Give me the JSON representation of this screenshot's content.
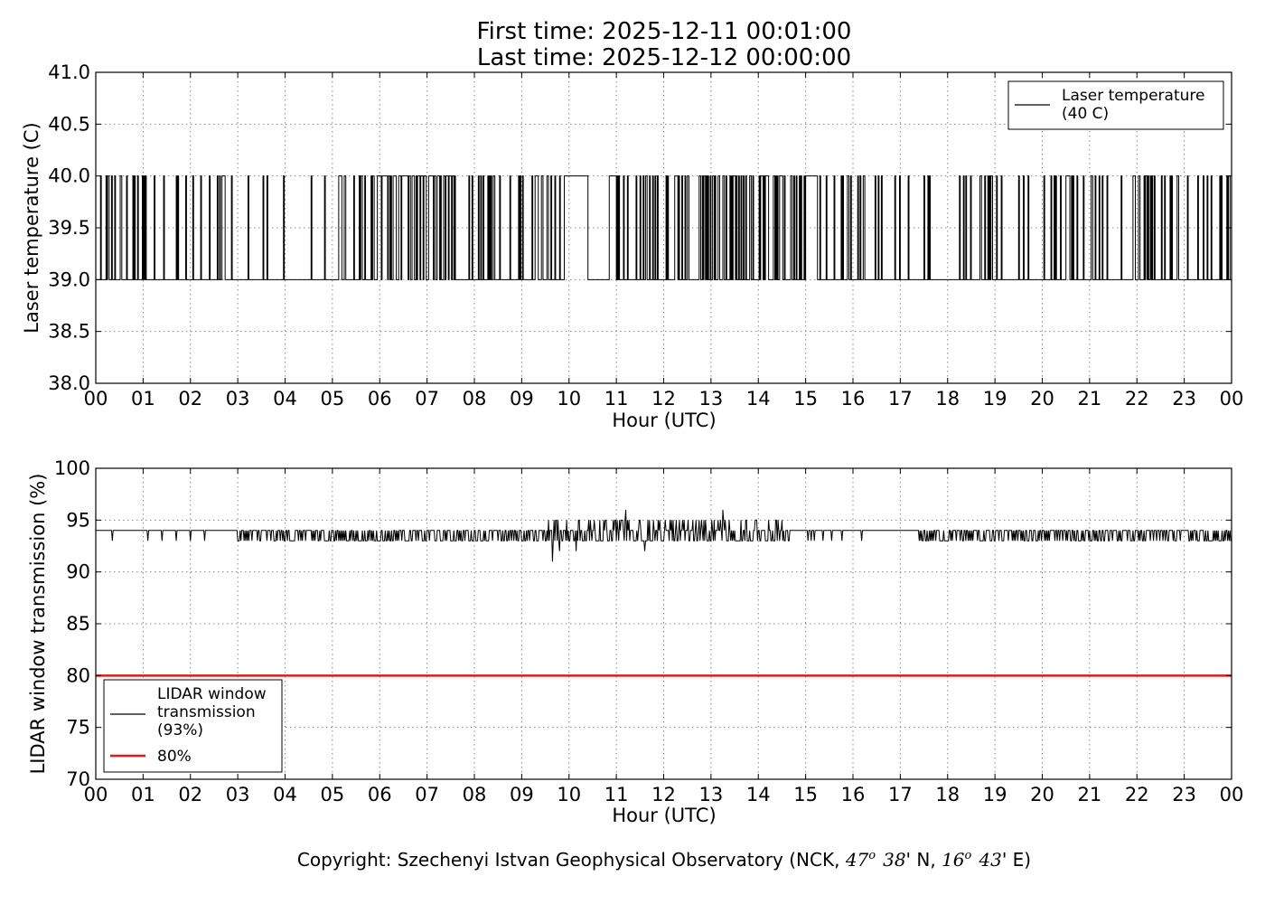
{
  "header": {
    "title_line1": "First time: 2025-12-11 00:01:00",
    "title_line2": "Last time: 2025-12-12 00:00:00"
  },
  "footer": {
    "copyright_prefix": "Copyright: Szechenyi Istvan Geophysical Observatory (NCK, ",
    "lat_deg": "47",
    "deg_mark": "o",
    "lat_min": "38",
    "lat_suffix": "' N, ",
    "lon_deg": "16",
    "lon_min": "43",
    "lon_suffix": "' E)"
  },
  "colors": {
    "series": "#000000",
    "threshold": "#e31a1c",
    "grid": "#888888"
  },
  "chart_data": [
    {
      "type": "line",
      "xlabel": "Hour (UTC)",
      "ylabel": "Laser temperature (C)",
      "xlim": [
        0,
        24
      ],
      "ylim": [
        38.0,
        41.0
      ],
      "x_ticks": [
        0,
        1,
        2,
        3,
        4,
        5,
        6,
        7,
        8,
        9,
        10,
        11,
        12,
        13,
        14,
        15,
        16,
        17,
        18,
        19,
        20,
        21,
        22,
        23,
        24
      ],
      "x_tick_labels": [
        "00",
        "01",
        "02",
        "03",
        "04",
        "05",
        "06",
        "07",
        "08",
        "09",
        "10",
        "11",
        "12",
        "13",
        "14",
        "15",
        "16",
        "17",
        "18",
        "19",
        "20",
        "21",
        "22",
        "23",
        "00"
      ],
      "y_ticks": [
        38.0,
        38.5,
        39.0,
        39.5,
        40.0,
        40.5,
        41.0
      ],
      "y_tick_labels": [
        "38.0",
        "38.5",
        "39.0",
        "39.5",
        "40.0",
        "40.5",
        "41.0"
      ],
      "grid": true,
      "legend_position": "top-right",
      "series": [
        {
          "name": "Laser temperature\n(40 C)",
          "style": "toggle",
          "low": 39.0,
          "high": 40.0,
          "segments": [
            {
              "from": 0.0,
              "to": 0.9,
              "state": "dense"
            },
            {
              "from": 0.9,
              "to": 3.0,
              "state": "sparse"
            },
            {
              "from": 3.0,
              "to": 5.0,
              "state": "rare"
            },
            {
              "from": 5.0,
              "to": 6.0,
              "state": "dense"
            },
            {
              "from": 6.0,
              "to": 7.6,
              "state": "dense_high"
            },
            {
              "from": 7.6,
              "to": 9.2,
              "state": "sparse"
            },
            {
              "from": 9.2,
              "to": 9.9,
              "state": "dense"
            },
            {
              "from": 9.9,
              "to": 10.4,
              "state": "high"
            },
            {
              "from": 10.4,
              "to": 10.85,
              "state": "low"
            },
            {
              "from": 10.85,
              "to": 11.0,
              "state": "high"
            },
            {
              "from": 11.0,
              "to": 14.2,
              "state": "dense"
            },
            {
              "from": 14.2,
              "to": 15.0,
              "state": "dense"
            },
            {
              "from": 15.0,
              "to": 15.25,
              "state": "high"
            },
            {
              "from": 15.25,
              "to": 17.0,
              "state": "sparse"
            },
            {
              "from": 17.0,
              "to": 18.15,
              "state": "rare"
            },
            {
              "from": 18.15,
              "to": 24.0,
              "state": "sparse"
            }
          ]
        }
      ]
    },
    {
      "type": "line",
      "xlabel": "Hour (UTC)",
      "ylabel": "LIDAR window transmission (%)",
      "xlim": [
        0,
        24
      ],
      "ylim": [
        70,
        100
      ],
      "x_ticks": [
        0,
        1,
        2,
        3,
        4,
        5,
        6,
        7,
        8,
        9,
        10,
        11,
        12,
        13,
        14,
        15,
        16,
        17,
        18,
        19,
        20,
        21,
        22,
        23,
        24
      ],
      "x_tick_labels": [
        "00",
        "01",
        "02",
        "03",
        "04",
        "05",
        "06",
        "07",
        "08",
        "09",
        "10",
        "11",
        "12",
        "13",
        "14",
        "15",
        "16",
        "17",
        "18",
        "19",
        "20",
        "21",
        "22",
        "23",
        "00"
      ],
      "y_ticks": [
        70,
        75,
        80,
        85,
        90,
        95,
        100
      ],
      "y_tick_labels": [
        "70",
        "75",
        "80",
        "85",
        "90",
        "95",
        "100"
      ],
      "grid": true,
      "legend_position": "bottom-left",
      "series": [
        {
          "name": "LIDAR window\ntransmission\n(93%)",
          "style": "noisy",
          "baseline": 94,
          "segments": [
            {
              "from": 0.0,
              "to": 3.0,
              "level": 94,
              "dips": [
                0.35,
                1.1,
                1.4,
                1.7,
                2.0,
                2.3
              ],
              "dip_to": 93
            },
            {
              "from": 3.0,
              "to": 9.5,
              "level": 94,
              "alt": 93,
              "density": "high"
            },
            {
              "from": 9.5,
              "to": 14.6,
              "level": 94,
              "alt": 93,
              "peaks": 95,
              "density": "very_high"
            },
            {
              "from": 14.6,
              "to": 16.3,
              "level": 94,
              "alt": 93,
              "density": "low"
            },
            {
              "from": 16.3,
              "to": 17.4,
              "level": 94
            },
            {
              "from": 17.4,
              "to": 24.0,
              "level": 94,
              "alt": 93,
              "density": "high"
            }
          ],
          "notable_points": [
            {
              "x": 9.65,
              "y": 91
            },
            {
              "x": 9.8,
              "y": 92
            },
            {
              "x": 10.15,
              "y": 92
            },
            {
              "x": 11.2,
              "y": 96
            },
            {
              "x": 11.6,
              "y": 92
            },
            {
              "x": 13.25,
              "y": 96
            }
          ]
        },
        {
          "name": "80%",
          "style": "constant",
          "value": 80,
          "color": "#e31a1c"
        }
      ]
    }
  ]
}
